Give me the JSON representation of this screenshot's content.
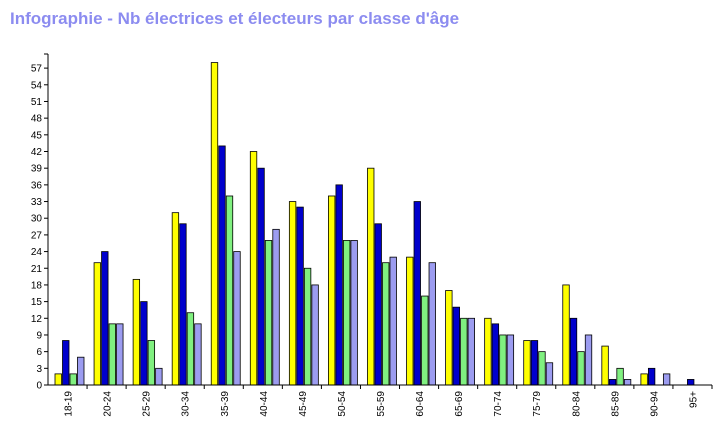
{
  "chart_data": {
    "type": "bar",
    "title": "Infographie - Nb électrices et électeurs par classe d'âge",
    "xlabel": "",
    "ylabel": "",
    "ylim": [
      0,
      59
    ],
    "yticks": [
      0,
      3,
      6,
      9,
      12,
      15,
      18,
      21,
      24,
      27,
      30,
      33,
      36,
      39,
      42,
      45,
      48,
      51,
      54,
      57
    ],
    "grid": false,
    "legend": "none",
    "categories": [
      "18-19",
      "20-24",
      "25-29",
      "30-34",
      "35-39",
      "40-44",
      "45-49",
      "50-54",
      "55-59",
      "60-64",
      "65-69",
      "70-74",
      "75-79",
      "80-84",
      "85-89",
      "90-94",
      "95+"
    ],
    "series": [
      {
        "color": "#ffff00",
        "values": [
          2,
          22,
          19,
          31,
          58,
          42,
          33,
          34,
          39,
          23,
          17,
          12,
          8,
          18,
          7,
          2,
          0
        ]
      },
      {
        "color": "#0000cc",
        "values": [
          8,
          24,
          15,
          29,
          43,
          39,
          32,
          36,
          29,
          33,
          14,
          11,
          8,
          12,
          1,
          3,
          1
        ]
      },
      {
        "color": "#80f080",
        "values": [
          2,
          11,
          8,
          13,
          34,
          26,
          21,
          26,
          22,
          16,
          12,
          9,
          6,
          6,
          3,
          0,
          0
        ]
      },
      {
        "color": "#9c9cf0",
        "values": [
          5,
          11,
          3,
          11,
          24,
          28,
          18,
          26,
          23,
          22,
          12,
          9,
          4,
          9,
          1,
          2,
          0
        ]
      }
    ]
  }
}
